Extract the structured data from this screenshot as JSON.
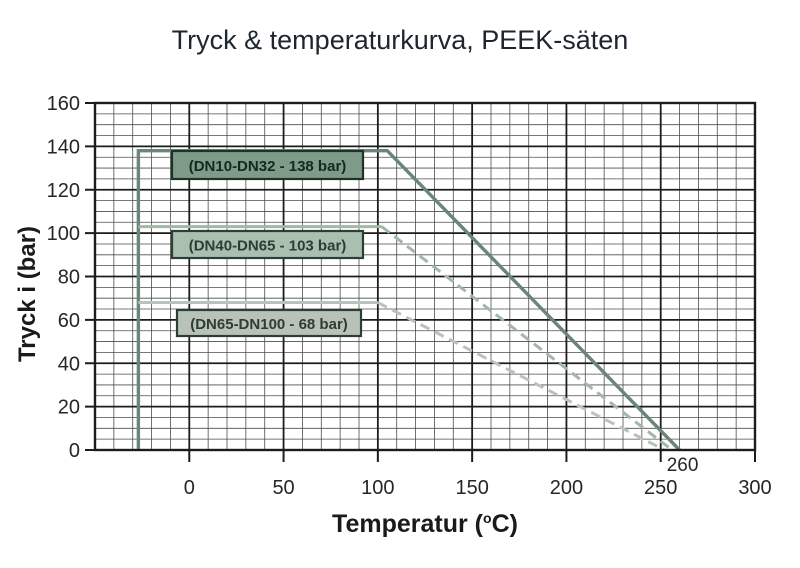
{
  "title": "Tryck & temperaturkurva, PEEK-säten",
  "chart_data": {
    "type": "line",
    "title": "Tryck & temperaturkurva, PEEK-säten",
    "xlabel": "Temperatur (°C)",
    "xlabel_parts": {
      "pre": "Temperatur (",
      "sup": "o",
      "post": "C)"
    },
    "ylabel": "Tryck i (bar)",
    "xlim": [
      -50,
      300
    ],
    "ylim": [
      0,
      160
    ],
    "x_ticks": [
      0,
      50,
      100,
      150,
      200,
      250,
      300
    ],
    "y_ticks": [
      0,
      20,
      40,
      60,
      80,
      100,
      120,
      140,
      160
    ],
    "x_minor_step": 10,
    "y_minor_step": 5,
    "grid": "both",
    "legend_position": "inline-boxes",
    "annotation": {
      "text": "260",
      "x": 260,
      "y": 0
    },
    "colors": {
      "grid_minor": "#4d4d4d",
      "grid_major": "#1c1c1c",
      "axis": "#1c1c1c",
      "tick_text": "#262626",
      "title_text": "#1d2530"
    },
    "series": [
      {
        "name": "DN10-DN32",
        "label": "(DN10-DN32 - 138 bar)",
        "max_pressure_bar": 138,
        "color": "#6b8577",
        "line_style": "solid",
        "points": [
          [
            -27,
            0
          ],
          [
            -27,
            138
          ],
          [
            105,
            138
          ],
          [
            260,
            0
          ]
        ],
        "label_box_fill": "#7d9b88",
        "label_box_border": "#1e3226",
        "label_text_color": "#16281e"
      },
      {
        "name": "DN40-DN65",
        "label": "(DN40-DN65 - 103 bar)",
        "max_pressure_bar": 103,
        "color": "#a3b7a8",
        "line_style": "solid-then-dashed",
        "points": [
          [
            -27,
            103
          ],
          [
            102,
            103
          ],
          [
            256,
            0
          ]
        ],
        "label_box_fill": "#aabfaf",
        "label_box_border": "#2a4034",
        "label_text_color": "#2e3d33"
      },
      {
        "name": "DN65-DN100",
        "label": "(DN65-DN100 - 68 bar)",
        "max_pressure_bar": 68,
        "color": "#b9c3b9",
        "line_style": "solid-then-dashed",
        "points": [
          [
            -27,
            68
          ],
          [
            100,
            68
          ],
          [
            252,
            0
          ]
        ],
        "label_box_fill": "#b9c2b9",
        "label_box_border": "#2a4034",
        "label_text_color": "#2e3d33"
      }
    ]
  }
}
